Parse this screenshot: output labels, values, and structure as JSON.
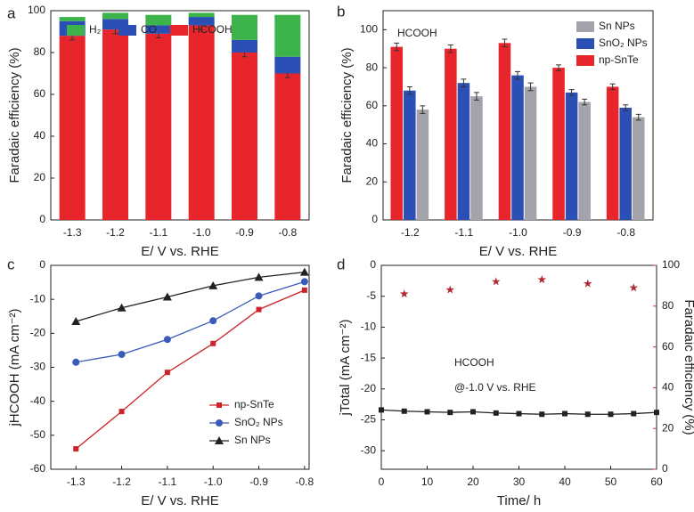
{
  "chart_data": [
    {
      "type": "stacked_bar",
      "panel_label": "a",
      "xlabel": "E/ V vs. RHE",
      "ylabel": "Faradaic efficiency (%)",
      "categories": [
        "-1.3",
        "-1.2",
        "-1.1",
        "-1.0",
        "-0.9",
        "-0.8"
      ],
      "series": [
        {
          "name": "HCOOH",
          "color": "#e8252a",
          "values": [
            88,
            91,
            89,
            93,
            80,
            70
          ],
          "errors": [
            2,
            2,
            2,
            2,
            2,
            2
          ]
        },
        {
          "name": "CO",
          "color": "#2b4fb5",
          "values": [
            7,
            5,
            4,
            4,
            6,
            8
          ]
        },
        {
          "name": "H₂",
          "color": "#3cb44b",
          "values": [
            2,
            3,
            5,
            2,
            12,
            20
          ]
        }
      ],
      "ylim": [
        0,
        100
      ],
      "yticks": [
        0,
        20,
        40,
        60,
        80,
        100
      ],
      "legend": "top-left"
    },
    {
      "type": "grouped_bar",
      "panel_label": "b",
      "xlabel": "E/ V vs. RHE",
      "ylabel": "Faradaic efficiency (%)",
      "annotation": "HCOOH",
      "categories": [
        "-1.2",
        "-1.1",
        "-1.0",
        "-0.9",
        "-0.8"
      ],
      "series": [
        {
          "name": "np-SnTe",
          "color": "#e8252a",
          "values": [
            91,
            90,
            93,
            80,
            70
          ],
          "errors": [
            2,
            2,
            2,
            1.5,
            1.5
          ]
        },
        {
          "name": "SnO₂ NPs",
          "color": "#2b4fb5",
          "values": [
            68,
            72,
            76,
            67,
            59
          ],
          "errors": [
            2,
            2,
            2,
            1.5,
            1.5
          ]
        },
        {
          "name": "Sn NPs",
          "color": "#a3a3ab",
          "values": [
            58,
            65,
            70,
            62,
            54
          ],
          "errors": [
            2,
            2,
            2,
            1.5,
            1.5
          ]
        }
      ],
      "ylim": [
        0,
        110
      ],
      "yticks": [
        0,
        20,
        40,
        60,
        80,
        100
      ],
      "legend": "top-right"
    },
    {
      "type": "line",
      "panel_label": "c",
      "xlabel": "E/ V vs. RHE",
      "ylabel": "jHCOOH (mA cm⁻²)",
      "x": [
        -1.3,
        -1.2,
        -1.1,
        -1.0,
        -0.9,
        -0.8
      ],
      "series": [
        {
          "name": "np-SnTe",
          "color": "#cc2229",
          "marker": "square",
          "values": [
            -54,
            -43,
            -31.5,
            -23,
            -13,
            -7.3
          ]
        },
        {
          "name": "SnO₂ NPs",
          "color": "#3a5bb8",
          "marker": "circle",
          "values": [
            -28.5,
            -26.2,
            -21.8,
            -16.3,
            -9,
            -4.8
          ]
        },
        {
          "name": "Sn NPs",
          "color": "#222222",
          "marker": "triangle",
          "values": [
            -16.5,
            -12.5,
            -9.3,
            -6,
            -3.5,
            -2
          ]
        }
      ],
      "xlim": [
        -1.355,
        -0.79
      ],
      "xticks": [
        -1.3,
        -1.2,
        -1.1,
        {
          "value": -1.0,
          "label": "-1.0"
        },
        -0.9,
        -0.8
      ],
      "ylim": [
        -60,
        0
      ],
      "yticks": [
        -60,
        -50,
        -40,
        -30,
        -20,
        -10,
        0
      ],
      "legend": "bottom-right"
    },
    {
      "type": "line",
      "panel_label": "d",
      "xlabel": "Time/ h",
      "ylabel": "jTotal (mA cm⁻²)",
      "y2label": "Faradaic efficiency (%)",
      "annotations": [
        "HCOOH",
        "@-1.0 V vs. RHE"
      ],
      "series": [
        {
          "color": "#222222",
          "marker": "square",
          "x": [
            0,
            5,
            10,
            15,
            20,
            25,
            30,
            35,
            40,
            45,
            50,
            55,
            60
          ],
          "values": [
            -23.4,
            -23.6,
            -23.7,
            -23.8,
            -23.7,
            -23.9,
            -24.0,
            -24.1,
            -24.0,
            -24.1,
            -24.1,
            -24.0,
            -23.8
          ]
        },
        {
          "color": "#b22a35",
          "marker": "star",
          "show_line": false,
          "axis": "y2",
          "x": [
            5,
            15,
            25,
            35,
            45,
            55
          ],
          "values": [
            86,
            88,
            92,
            93,
            91,
            89
          ]
        }
      ],
      "xlim": [
        0,
        60
      ],
      "xticks": [
        0,
        10,
        20,
        30,
        40,
        50,
        60
      ],
      "ylim": [
        -33,
        0
      ],
      "yticks": [
        -30,
        -25,
        -20,
        -15,
        -10,
        -5,
        0
      ],
      "y2lim": [
        0,
        100
      ],
      "y2ticks": [
        0,
        20,
        40,
        60,
        80,
        100
      ],
      "y2color": "#c0304a"
    }
  ]
}
